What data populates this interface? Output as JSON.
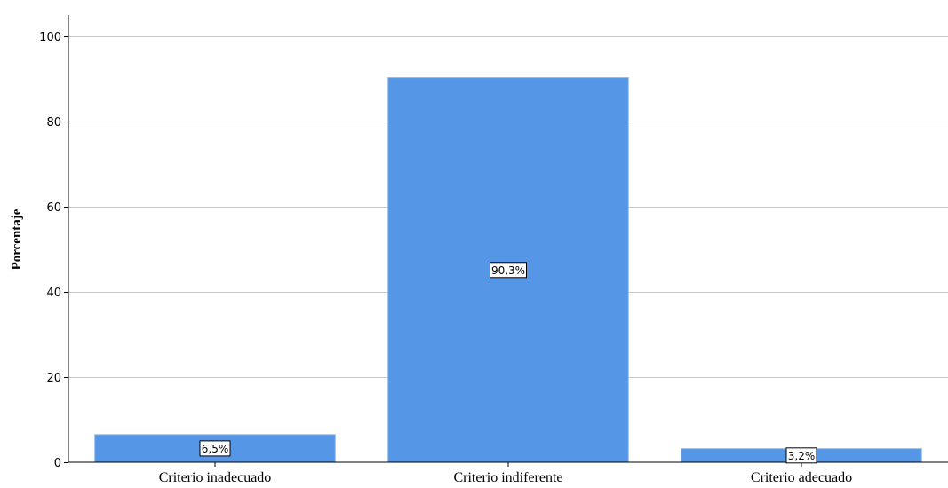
{
  "chart_data": {
    "type": "bar",
    "categories": [
      "Criterio inadecuado",
      "Criterio indiferente",
      "Criterio adecuado"
    ],
    "values": [
      6.5,
      90.3,
      3.2
    ],
    "data_labels": [
      "6,5%",
      "90,3%",
      "3,2%"
    ],
    "title": "",
    "xlabel": "",
    "ylabel": "Porcentaje",
    "ylim": [
      0,
      105
    ],
    "yticks": [
      0,
      20,
      40,
      60,
      80,
      100
    ],
    "ytick_labels": [
      "0",
      "20",
      "40",
      "60",
      "80",
      "100"
    ],
    "grid": true,
    "bar_color": "#5596e6",
    "bar_edge_color": "#8fb8f0"
  }
}
